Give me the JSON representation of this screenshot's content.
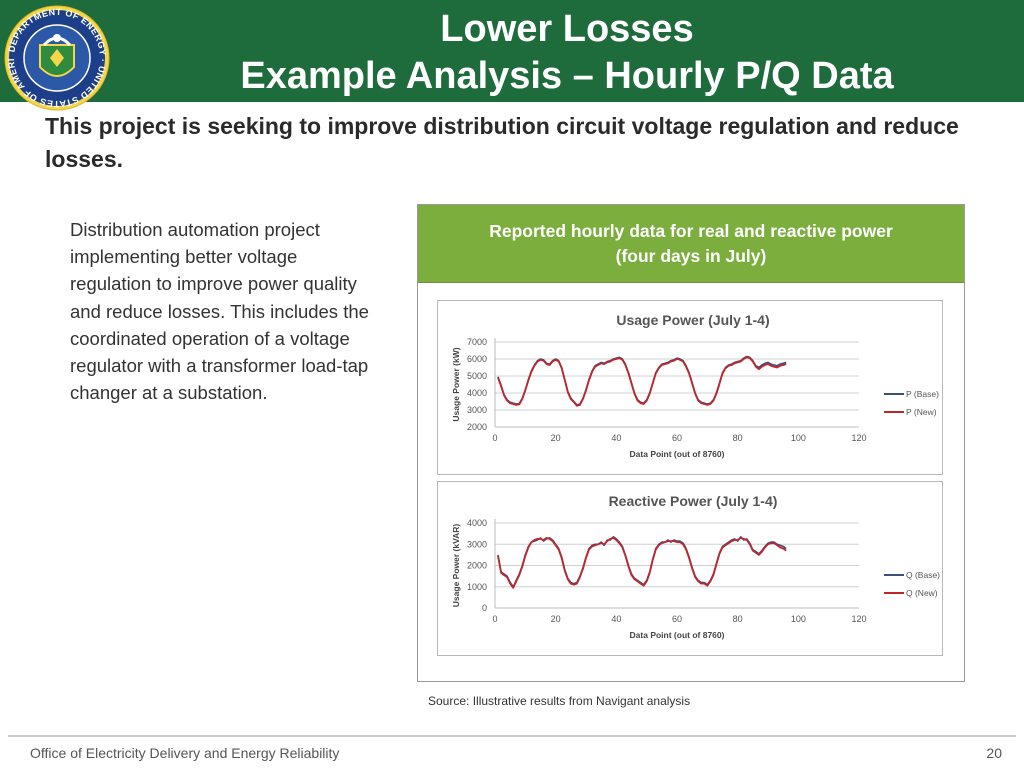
{
  "header": {
    "title_line1": "Lower Losses",
    "title_line2": "Example Analysis – Hourly P/Q Data",
    "seal_text": "DEPARTMENT OF ENERGY · UNITED STATES OF AMERICA"
  },
  "intro": "This project is seeking to improve distribution circuit voltage regulation and reduce losses.",
  "body_text": "Distribution automation project implementing  better voltage regulation to improve power quality and reduce losses. This includes the coordinated operation of a voltage regulator with a transformer load-tap changer at a substation.",
  "panel": {
    "heading_line1": "Reported hourly data for real and reactive power",
    "heading_line2": "(four days in July)"
  },
  "source": "Source: Illustrative results from Navigant analysis",
  "footer": {
    "org": "Office of Electricity Delivery and Energy Reliability",
    "page_number": "20"
  },
  "colors": {
    "header_green": "#1e6b3c",
    "panel_green": "#7cae3e",
    "base_series": "#3b4f7c",
    "new_series": "#c0272d"
  },
  "chart_data": [
    {
      "type": "line",
      "title": "Usage Power (July 1-4)",
      "xlabel": "Data Point (out of 8760)",
      "ylabel": "Usage Power (kW)",
      "xlim": [
        0,
        120
      ],
      "ylim": [
        2000,
        7000
      ],
      "x_ticks": [
        0,
        20,
        40,
        60,
        80,
        100,
        120
      ],
      "y_ticks": [
        2000,
        3000,
        4000,
        5000,
        6000,
        7000
      ],
      "grid": "horizontal",
      "legend": "right",
      "x": [
        1,
        2,
        3,
        4,
        5,
        6,
        7,
        8,
        9,
        10,
        11,
        12,
        13,
        14,
        15,
        16,
        17,
        18,
        19,
        20,
        21,
        22,
        23,
        24,
        25,
        26,
        27,
        28,
        29,
        30,
        31,
        32,
        33,
        34,
        35,
        36,
        37,
        38,
        39,
        40,
        41,
        42,
        43,
        44,
        45,
        46,
        47,
        48,
        49,
        50,
        51,
        52,
        53,
        54,
        55,
        56,
        57,
        58,
        59,
        60,
        61,
        62,
        63,
        64,
        65,
        66,
        67,
        68,
        69,
        70,
        71,
        72,
        73,
        74,
        75,
        76,
        77,
        78,
        79,
        80,
        81,
        82,
        83,
        84,
        85,
        86,
        87,
        88,
        89,
        90,
        91,
        92,
        93,
        94,
        95,
        96
      ],
      "series": [
        {
          "name": "P (Base)",
          "values": [
            4950,
            4450,
            3900,
            3600,
            3450,
            3400,
            3350,
            3380,
            3700,
            4200,
            4800,
            5300,
            5650,
            5900,
            6000,
            5950,
            5750,
            5700,
            5900,
            6000,
            5900,
            5500,
            4800,
            4100,
            3700,
            3500,
            3300,
            3350,
            3700,
            4200,
            4800,
            5300,
            5600,
            5700,
            5800,
            5750,
            5850,
            5900,
            6000,
            6050,
            6100,
            6000,
            5700,
            5200,
            4600,
            4000,
            3600,
            3450,
            3400,
            3600,
            4000,
            4600,
            5200,
            5500,
            5700,
            5750,
            5800,
            5900,
            5950,
            6050,
            6000,
            5900,
            5600,
            5200,
            4600,
            4000,
            3600,
            3450,
            3400,
            3350,
            3400,
            3600,
            4000,
            4600,
            5200,
            5500,
            5650,
            5700,
            5800,
            5850,
            5900,
            6050,
            6150,
            6100,
            5900,
            5600,
            5500,
            5650,
            5750,
            5800,
            5700,
            5650,
            5600,
            5700,
            5750,
            5800
          ]
        },
        {
          "name": "P (New)",
          "values": [
            4900,
            4400,
            3850,
            3550,
            3400,
            3350,
            3300,
            3330,
            3650,
            4150,
            4750,
            5250,
            5600,
            5850,
            5950,
            5900,
            5700,
            5650,
            5850,
            5950,
            5850,
            5450,
            4750,
            4050,
            3650,
            3450,
            3250,
            3300,
            3650,
            4150,
            4750,
            5250,
            5550,
            5650,
            5750,
            5700,
            5800,
            5850,
            5950,
            6000,
            6050,
            5950,
            5650,
            5150,
            4550,
            3950,
            3550,
            3400,
            3350,
            3550,
            3950,
            4550,
            5150,
            5450,
            5650,
            5700,
            5750,
            5850,
            5900,
            6000,
            5950,
            5850,
            5550,
            5150,
            4550,
            3950,
            3550,
            3400,
            3350,
            3300,
            3350,
            3550,
            3950,
            4550,
            5150,
            5450,
            5600,
            5650,
            5750,
            5800,
            5850,
            6000,
            6100,
            6050,
            5850,
            5550,
            5400,
            5550,
            5650,
            5700,
            5600,
            5550,
            5500,
            5600,
            5650,
            5700
          ]
        }
      ]
    },
    {
      "type": "line",
      "title": "Reactive Power (July 1-4)",
      "xlabel": "Data Point (out of 8760)",
      "ylabel": "Usage Power (kVAR)",
      "xlim": [
        0,
        120
      ],
      "ylim": [
        0,
        4000
      ],
      "x_ticks": [
        0,
        20,
        40,
        60,
        80,
        100,
        120
      ],
      "y_ticks": [
        0,
        1000,
        2000,
        3000,
        4000
      ],
      "grid": "horizontal",
      "legend": "right",
      "x": [
        1,
        2,
        3,
        4,
        5,
        6,
        7,
        8,
        9,
        10,
        11,
        12,
        13,
        14,
        15,
        16,
        17,
        18,
        19,
        20,
        21,
        22,
        23,
        24,
        25,
        26,
        27,
        28,
        29,
        30,
        31,
        32,
        33,
        34,
        35,
        36,
        37,
        38,
        39,
        40,
        41,
        42,
        43,
        44,
        45,
        46,
        47,
        48,
        49,
        50,
        51,
        52,
        53,
        54,
        55,
        56,
        57,
        58,
        59,
        60,
        61,
        62,
        63,
        64,
        65,
        66,
        67,
        68,
        69,
        70,
        71,
        72,
        73,
        74,
        75,
        76,
        77,
        78,
        79,
        80,
        81,
        82,
        83,
        84,
        85,
        86,
        87,
        88,
        89,
        90,
        91,
        92,
        93,
        94,
        95,
        96
      ],
      "series": [
        {
          "name": "Q (Base)",
          "values": [
            2500,
            1700,
            1600,
            1500,
            1200,
            1000,
            1300,
            1600,
            2000,
            2500,
            2900,
            3100,
            3150,
            3200,
            3300,
            3150,
            3250,
            3300,
            3200,
            3000,
            2800,
            2400,
            1800,
            1400,
            1200,
            1150,
            1200,
            1500,
            1900,
            2400,
            2800,
            2950,
            3000,
            3000,
            3100,
            2950,
            3200,
            3200,
            3350,
            3250,
            3100,
            2900,
            2500,
            2000,
            1600,
            1400,
            1300,
            1200,
            1100,
            1300,
            1700,
            2300,
            2800,
            3000,
            3100,
            3100,
            3200,
            3100,
            3200,
            3150,
            3150,
            3050,
            2800,
            2400,
            1900,
            1500,
            1300,
            1200,
            1200,
            1100,
            1300,
            1600,
            2100,
            2600,
            2900,
            3000,
            3100,
            3200,
            3250,
            3150,
            3350,
            3200,
            3250,
            3050,
            2750,
            2650,
            2550,
            2700,
            2900,
            3050,
            3100,
            3100,
            3000,
            2950,
            2900,
            2800
          ]
        },
        {
          "name": "Q (New)",
          "values": [
            2450,
            1650,
            1550,
            1450,
            1150,
            950,
            1250,
            1550,
            1950,
            2450,
            2850,
            3100,
            3200,
            3250,
            3250,
            3200,
            3300,
            3250,
            3150,
            2950,
            2750,
            2350,
            1750,
            1350,
            1150,
            1100,
            1150,
            1450,
            1850,
            2350,
            2750,
            2900,
            2950,
            3000,
            3050,
            3000,
            3150,
            3250,
            3300,
            3200,
            3050,
            2850,
            2450,
            1950,
            1550,
            1350,
            1250,
            1150,
            1050,
            1250,
            1650,
            2250,
            2750,
            2950,
            3050,
            3100,
            3150,
            3150,
            3150,
            3100,
            3100,
            3000,
            2750,
            2350,
            1850,
            1450,
            1250,
            1150,
            1150,
            1050,
            1250,
            1550,
            2050,
            2550,
            2850,
            2950,
            3050,
            3150,
            3200,
            3200,
            3300,
            3250,
            3200,
            3000,
            2700,
            2600,
            2500,
            2650,
            2850,
            3000,
            3050,
            3050,
            2950,
            2850,
            2800,
            2700
          ]
        }
      ]
    }
  ]
}
